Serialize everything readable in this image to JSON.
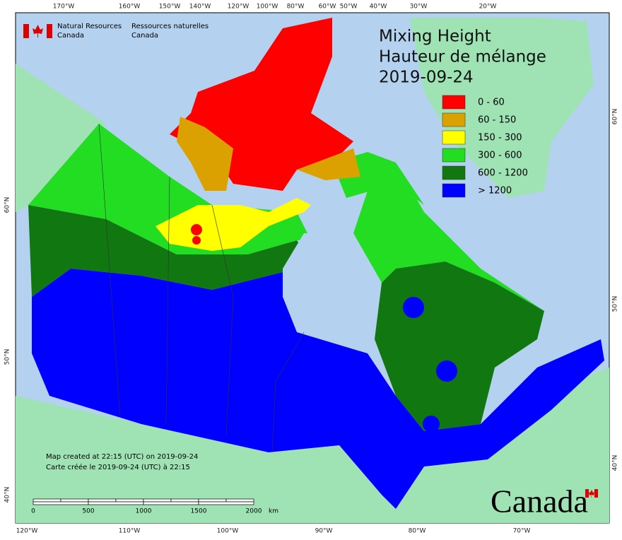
{
  "header": {
    "en_line1": "Natural Resources",
    "en_line2": "Canada",
    "fr_line1": "Ressources naturelles",
    "fr_line2": "Canada"
  },
  "title": {
    "line1": "Mixing Height",
    "line2": "Hauteur de mélange",
    "date": "2019-09-24"
  },
  "legend": [
    {
      "label": "0 - 60",
      "color": "#ff0000"
    },
    {
      "label": "60 - 150",
      "color": "#dba100"
    },
    {
      "label": "150 - 300",
      "color": "#ffff00"
    },
    {
      "label": "300 - 600",
      "color": "#22dd22"
    },
    {
      "label": "600 - 1200",
      "color": "#117711"
    },
    {
      "label": "> 1200",
      "color": "#0000ff"
    }
  ],
  "notes": [
    "Map created at 22:15 (UTC) on 2019-09-24",
    "Carte créée le 2019-09-24 (UTC) à 22:15"
  ],
  "scale_bar": {
    "labels": [
      "0",
      "500",
      "1000",
      "1500",
      "2000"
    ],
    "unit": "km"
  },
  "graticule": {
    "top": [
      "170°W",
      "160°W",
      "150°W",
      "140°W",
      "120°W",
      "100°W",
      "80°W",
      "60°W",
      "50°W",
      "40°W",
      "30°W",
      "20°W"
    ],
    "bottom": [
      "120°W",
      "110°W",
      "100°W",
      "90°W",
      "80°W",
      "70°W"
    ],
    "left": [
      "60°N",
      "50°N",
      "40°N"
    ],
    "right": [
      "60°N",
      "50°N",
      "40°N"
    ]
  },
  "wordmark": "Canada"
}
